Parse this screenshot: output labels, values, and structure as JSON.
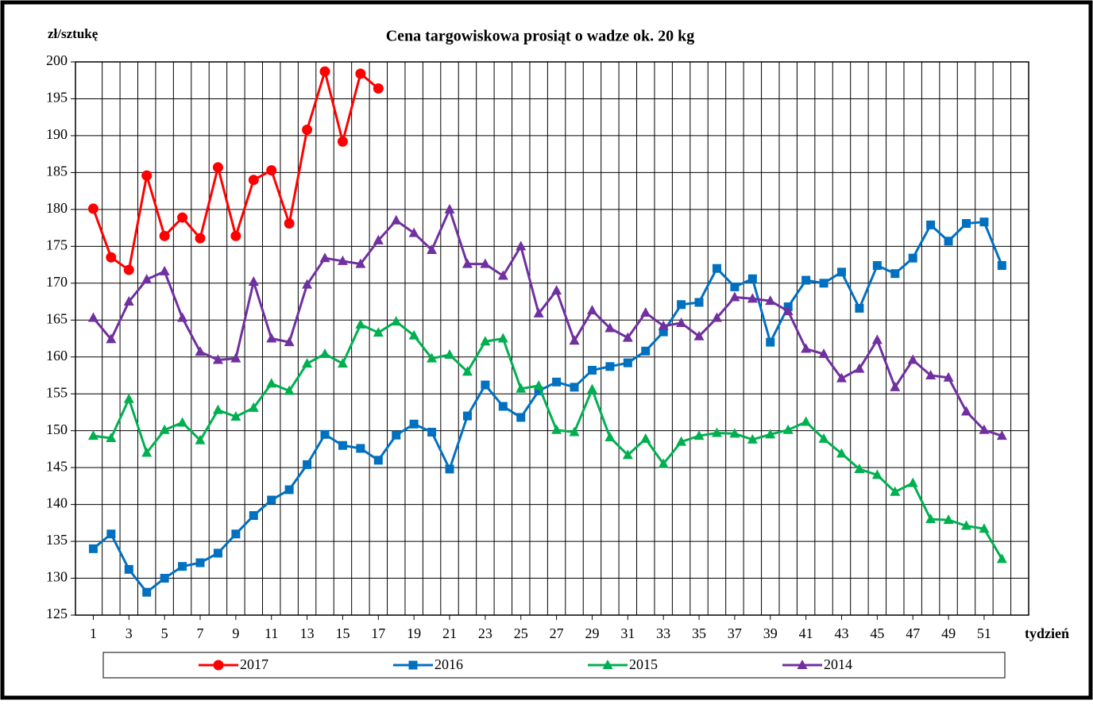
{
  "chart_data": {
    "type": "line",
    "title": "Cena targowiskowa prosiąt o wadze ok. 20 kg",
    "y_label": "zł/sztukę",
    "x_label": "tydzień",
    "x": [
      1,
      2,
      3,
      4,
      5,
      6,
      7,
      8,
      9,
      10,
      11,
      12,
      13,
      14,
      15,
      16,
      17,
      18,
      19,
      20,
      21,
      22,
      23,
      24,
      25,
      26,
      27,
      28,
      29,
      30,
      31,
      32,
      33,
      34,
      35,
      36,
      37,
      38,
      39,
      40,
      41,
      42,
      43,
      44,
      45,
      46,
      47,
      48,
      49,
      50,
      51,
      52
    ],
    "xlim": [
      0,
      53.5
    ],
    "xticks": [
      1,
      3,
      5,
      7,
      9,
      11,
      13,
      15,
      17,
      19,
      21,
      23,
      25,
      27,
      29,
      31,
      33,
      35,
      37,
      39,
      41,
      43,
      45,
      47,
      49,
      51
    ],
    "ylim": [
      125,
      200
    ],
    "yticks": [
      125,
      130,
      135,
      140,
      145,
      150,
      155,
      160,
      165,
      170,
      175,
      180,
      185,
      190,
      195,
      200
    ],
    "grid": true,
    "legend": "bottom",
    "series": [
      {
        "name": "2017",
        "color": "#ff0000",
        "marker": "circle",
        "values": [
          180.1,
          173.5,
          171.8,
          184.6,
          176.4,
          178.9,
          176.1,
          185.7,
          176.4,
          184.0,
          185.3,
          178.1,
          190.8,
          198.7,
          189.2,
          198.4,
          196.4,
          null,
          null,
          null,
          null,
          null,
          null,
          null,
          null,
          null,
          null,
          null,
          null,
          null,
          null,
          null,
          null,
          null,
          null,
          null,
          null,
          null,
          null,
          null,
          null,
          null,
          null,
          null,
          null,
          null,
          null,
          null,
          null,
          null,
          null,
          null
        ]
      },
      {
        "name": "2016",
        "color": "#0070c0",
        "marker": "square",
        "values": [
          134.0,
          136.0,
          131.2,
          128.1,
          130.0,
          131.6,
          132.1,
          133.4,
          136.0,
          138.5,
          140.6,
          142.0,
          145.4,
          149.5,
          148.0,
          147.6,
          146.0,
          149.4,
          150.9,
          149.8,
          144.8,
          152.0,
          156.2,
          153.3,
          151.8,
          155.4,
          156.6,
          155.9,
          158.2,
          158.7,
          159.2,
          160.8,
          163.4,
          167.1,
          167.4,
          172.0,
          169.5,
          170.6,
          162.0,
          166.8,
          170.4,
          170.0,
          171.5,
          166.6,
          172.4,
          171.3,
          173.4,
          177.9,
          175.7,
          178.1,
          178.3,
          172.4
        ]
      },
      {
        "name": "2015",
        "color": "#00b050",
        "marker": "triangle",
        "values": [
          149.3,
          149.0,
          154.3,
          147.0,
          150.1,
          151.1,
          148.7,
          152.8,
          151.9,
          153.1,
          156.4,
          155.4,
          159.1,
          160.4,
          159.1,
          164.4,
          163.3,
          164.8,
          162.9,
          159.8,
          160.3,
          158.0,
          162.1,
          162.5,
          155.7,
          156.1,
          150.1,
          149.8,
          155.6,
          149.1,
          146.7,
          148.9,
          145.5,
          148.5,
          149.3,
          149.7,
          149.6,
          148.8,
          149.5,
          150.1,
          151.2,
          148.9,
          146.9,
          144.8,
          144.0,
          141.7,
          142.9,
          138.0,
          137.9,
          137.1,
          136.7,
          132.6
        ]
      },
      {
        "name": "2014",
        "color": "#7030a0",
        "marker": "triangle",
        "values": [
          165.3,
          162.4,
          167.5,
          170.5,
          171.6,
          165.3,
          160.7,
          159.6,
          159.8,
          170.2,
          162.5,
          162.0,
          169.8,
          173.4,
          173.0,
          172.6,
          175.8,
          178.5,
          176.8,
          174.5,
          180.0,
          172.6,
          172.6,
          171.0,
          175.0,
          165.9,
          169.0,
          162.2,
          166.3,
          163.9,
          162.6,
          166.0,
          164.2,
          164.6,
          162.8,
          165.3,
          168.1,
          167.9,
          167.6,
          166.2,
          161.1,
          160.4,
          157.1,
          158.4,
          162.3,
          155.9,
          159.6,
          157.5,
          157.2,
          152.6,
          150.1,
          149.3
        ]
      }
    ]
  }
}
